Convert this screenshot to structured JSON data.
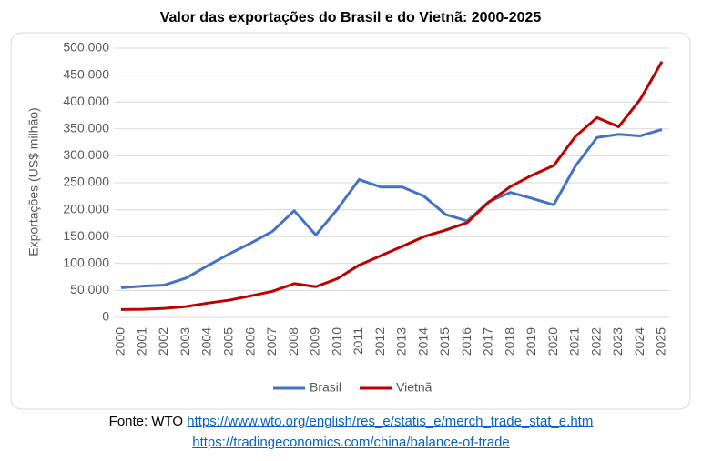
{
  "chart_data": {
    "type": "line",
    "title": "Valor das exportações do Brasil e do Vietnã: 2000-2025",
    "y_label": "Exportações (US$ milhão)",
    "categories": [
      "2000",
      "2001",
      "2002",
      "2003",
      "2004",
      "2005",
      "2006",
      "2007",
      "2008",
      "2009",
      "2010",
      "2011",
      "2012",
      "2013",
      "2014",
      "2015",
      "2016",
      "2017",
      "2018",
      "2019",
      "2020",
      "2021",
      "2022",
      "2023",
      "2024",
      "2025"
    ],
    "series": [
      {
        "name": "Brasil",
        "color": "#4472c4",
        "values": [
          55000,
          58000,
          60000,
          73000,
          96000,
          118000,
          138000,
          160000,
          198000,
          153000,
          201000,
          256000,
          242000,
          242000,
          225000,
          191000,
          179000,
          215000,
          232000,
          221000,
          209000,
          281000,
          334000,
          340000,
          337000,
          349000
        ]
      },
      {
        "name": "Vietnã",
        "color": "#c00000",
        "values": [
          14500,
          15000,
          16700,
          20000,
          26500,
          32000,
          40000,
          48500,
          62700,
          57000,
          72000,
          97000,
          114500,
          132000,
          150000,
          162000,
          176000,
          214000,
          243000,
          264000,
          282000,
          336000,
          371000,
          354000,
          405000,
          475000
        ]
      }
    ],
    "ylim": [
      0,
      500000
    ],
    "yticks": [
      0,
      {
        "value": 50000,
        "label": "50.000"
      },
      {
        "value": 100000,
        "label": "100.000"
      },
      {
        "value": 150000,
        "label": "150.000"
      },
      {
        "value": 200000,
        "label": "200.000"
      },
      {
        "value": 250000,
        "label": "250.000"
      },
      {
        "value": 300000,
        "label": "300.000"
      },
      {
        "value": 350000,
        "label": "350.000"
      },
      {
        "value": 400000,
        "label": "400.000"
      },
      {
        "value": 450000,
        "label": "450.000"
      },
      {
        "value": 500000,
        "label": "500.000"
      }
    ],
    "grid": true,
    "legend": "bottom"
  },
  "footer": {
    "source_label": "Fonte: WTO",
    "links": [
      "https://www.wto.org/english/res_e/statis_e/merch_trade_stat_e.htm",
      "https://tradingeconomics.com/china/balance-of-trade"
    ]
  }
}
